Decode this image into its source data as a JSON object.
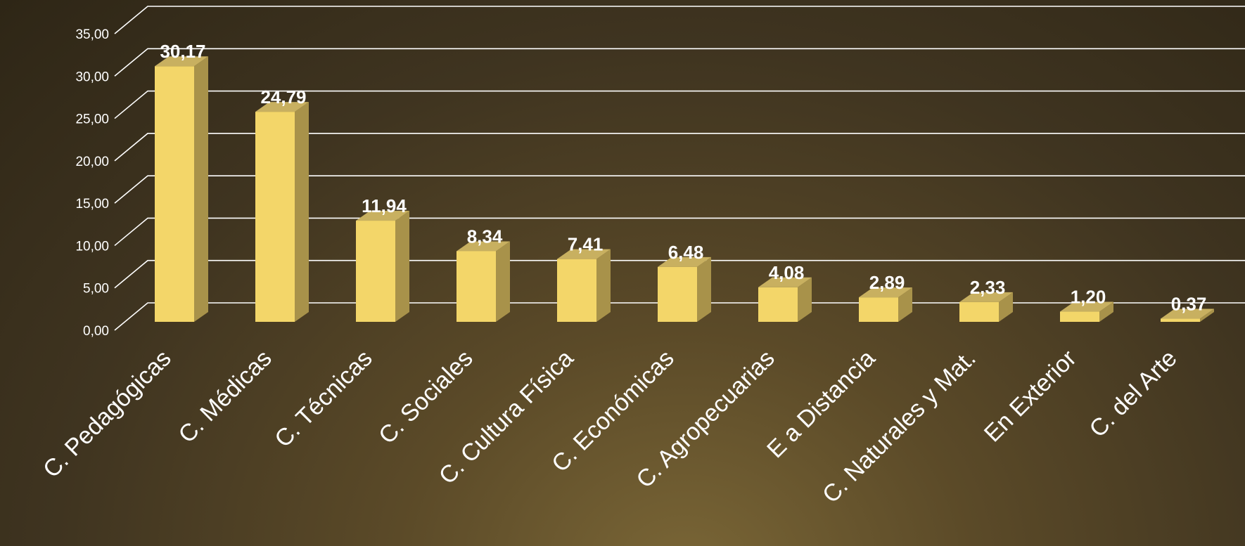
{
  "chart_data": {
    "type": "bar",
    "categories": [
      "C. Pedagógicas",
      "C. Médicas",
      "C. Técnicas",
      "C. Sociales",
      "C. Cultura Física",
      "C. Económicas",
      "C. Agropecuarias",
      "E a Distancia",
      "C. Naturales y Mat.",
      "En Exterior",
      "C. del Arte"
    ],
    "values": [
      30.17,
      24.79,
      11.94,
      8.34,
      7.41,
      6.48,
      4.08,
      2.89,
      2.33,
      1.2,
      0.37
    ],
    "value_labels": [
      "30,17",
      "24,79",
      "11,94",
      "8,34",
      "7,41",
      "6,48",
      "4,08",
      "2,89",
      "2,33",
      "1,20",
      "0,37"
    ],
    "y_ticks": [
      "0,00",
      "5,00",
      "10,00",
      "15,00",
      "20,00",
      "25,00",
      "30,00",
      "35,00"
    ],
    "ylim": [
      0,
      35
    ],
    "grid": true,
    "style": "3d-column",
    "colors": {
      "bar_front": "#f3d669",
      "bar_side": "#a8924a",
      "bar_top": "#c8b060",
      "gridline": "#ffffff",
      "text": "#ffffff"
    }
  }
}
